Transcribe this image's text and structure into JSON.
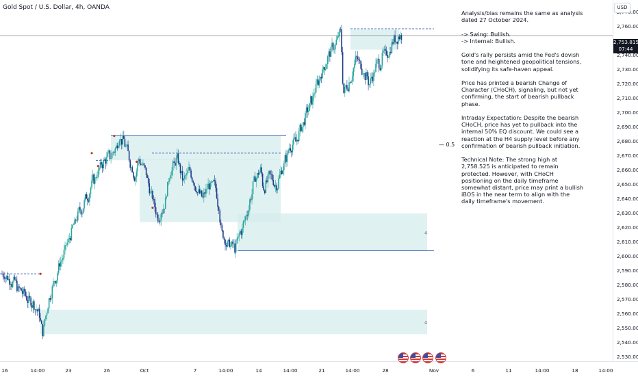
{
  "symbol_title": "Gold Spot / U.S. Dollar, 4h, OANDA",
  "currency": "USD",
  "last_price": "2,753.815",
  "countdown": "07:44",
  "fib_label": "0.5",
  "zone_marker": "4",
  "notes": {
    "intro": "Analysis/bias remains the same as analysis dated 27 October 2024.",
    "swing": "-> Swing:  Bullish.",
    "internal": "-> Internal:  Bullish.",
    "p1": "Gold's rally persists amid the Fed's dovish tone and heightened geopolitical tensions, solidifying its safe-haven appeal.",
    "p2": "Price has printed a bearish Change of Character (CHoCH), signaling, but not yet confirming, the start of bearish pullback phase.",
    "p3": "Intraday Expectation: Despite the bearish CHoCH, price has yet to pullback into the internal 50% EQ discount. We could see a reaction at the H4 supply level before any confirmation of bearish pullback initiation.",
    "p4": "Technical Note: The strong high at 2,758.525 is anticipated to remain protected. However, with CHoCH positioning on the daily timeframe somewhat distant, price may print a bullish iBOS in the near term to align with the daily timeframe's movement."
  },
  "colors": {
    "up": "#26a69a",
    "down": "#1e3a8a",
    "zone": "#d6ecec",
    "line": "#1f4fa8",
    "bg": "#ffffff"
  },
  "icons": [
    "us-flag-icon",
    "us-flag-icon",
    "us-flag-icon",
    "us-flag-icon"
  ],
  "chart_data": {
    "type": "candlestick",
    "title": "Gold Spot / U.S. Dollar, 4h, OANDA",
    "ylim": [
      2526,
      2776
    ],
    "y_ticks": [
      "2,770.000",
      "2,760.000",
      "2,750.000",
      "2,740.000",
      "2,730.000",
      "2,720.000",
      "2,710.000",
      "2,700.000",
      "2,690.000",
      "2,680.000",
      "2,670.000",
      "2,660.000",
      "2,650.000",
      "2,640.000",
      "2,630.000",
      "2,620.000",
      "2,610.000",
      "2,600.000",
      "2,590.000",
      "2,580.000",
      "2,570.000",
      "2,560.000",
      "2,550.000",
      "2,540.000",
      "2,530.000"
    ],
    "x_ticks": [
      "16",
      "14:00",
      "23",
      "26",
      "Oct",
      "7",
      "14:00",
      "14",
      "14:00",
      "21",
      "14:00",
      "28",
      "Nov",
      "6",
      "11",
      "14:00",
      "18",
      "14:00"
    ],
    "waypoints": [
      [
        2588,
        0
      ],
      [
        2582,
        3
      ],
      [
        2574,
        6
      ],
      [
        2567,
        9
      ],
      [
        2560,
        11
      ],
      [
        2548,
        12
      ],
      [
        2570,
        14
      ],
      [
        2592,
        17
      ],
      [
        2610,
        20
      ],
      [
        2628,
        23
      ],
      [
        2642,
        26
      ],
      [
        2654,
        28
      ],
      [
        2662,
        30
      ],
      [
        2670,
        33
      ],
      [
        2676,
        35
      ],
      [
        2684,
        36
      ],
      [
        2676,
        38
      ],
      [
        2662,
        40
      ],
      [
        2656,
        41
      ],
      [
        2668,
        42
      ],
      [
        2660,
        44
      ],
      [
        2642,
        46
      ],
      [
        2628,
        48
      ],
      [
        2636,
        50
      ],
      [
        2660,
        52
      ],
      [
        2668,
        54
      ],
      [
        2652,
        56
      ],
      [
        2660,
        58
      ],
      [
        2648,
        60
      ],
      [
        2640,
        62
      ],
      [
        2650,
        64
      ],
      [
        2648,
        66
      ],
      [
        2636,
        67
      ],
      [
        2616,
        68
      ],
      [
        2608,
        70
      ],
      [
        2606,
        72
      ],
      [
        2618,
        74
      ],
      [
        2632,
        76
      ],
      [
        2652,
        78
      ],
      [
        2660,
        80
      ],
      [
        2648,
        81
      ],
      [
        2656,
        83
      ],
      [
        2650,
        85
      ],
      [
        2662,
        87
      ],
      [
        2676,
        89
      ],
      [
        2680,
        91
      ],
      [
        2690,
        93
      ],
      [
        2702,
        95
      ],
      [
        2716,
        97
      ],
      [
        2728,
        99
      ],
      [
        2738,
        101
      ],
      [
        2746,
        103
      ],
      [
        2756,
        105
      ],
      [
        2714,
        106
      ],
      [
        2724,
        108
      ],
      [
        2738,
        110
      ],
      [
        2730,
        112
      ],
      [
        2720,
        114
      ],
      [
        2732,
        116
      ],
      [
        2738,
        118
      ],
      [
        2742,
        120
      ],
      [
        2752,
        122
      ],
      [
        2754,
        124
      ]
    ],
    "zones": [
      {
        "from": 2667,
        "to": 2684,
        "label": ""
      },
      {
        "from": 2624,
        "to": 2668,
        "label": ""
      },
      {
        "from": 2604,
        "to": 2630,
        "label": "4"
      },
      {
        "from": 2546,
        "to": 2563,
        "label": "4"
      },
      {
        "from": 2744,
        "to": 2758,
        "label": ""
      }
    ],
    "levels": [
      {
        "price": 2758.525,
        "style": "dashed"
      },
      {
        "price": 2753.815,
        "style": "solid"
      },
      {
        "price": 2684,
        "style": "solid"
      },
      {
        "price": 2604,
        "style": "solid"
      },
      {
        "price": 2672,
        "style": "dashed"
      },
      {
        "price": 2667,
        "style": "dashed"
      },
      {
        "price": 2588,
        "style": "dashed"
      }
    ]
  }
}
